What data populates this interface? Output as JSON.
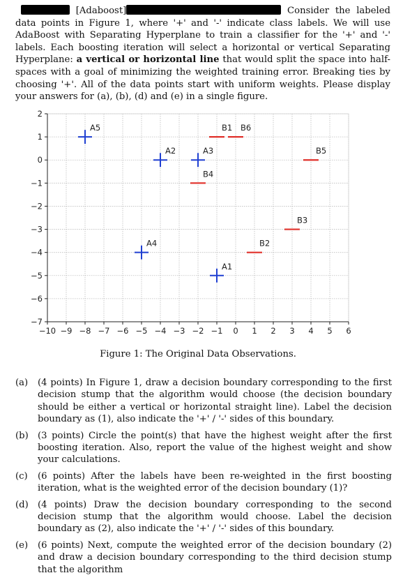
{
  "intro": {
    "tag": "[Adaboost]",
    "text_after_redaction": "Consider the labeled data points in Figure 1, where '+' and '-' indicate class labels. We will use AdaBoost with Separating Hyperplane to train a classifier for the '+' and '-' labels. Each boosting iteration will select a horizontal or vertical Separating Hyperplane: ",
    "bold_text": "a vertical or horizontal line",
    "text_end": " that would split the space into half-spaces with a goal of minimizing the weighted training error. Breaking ties by choosing '+'. All of the data points start with uniform weights. Please display your answers for (a), (b), (d) and (e) in a single figure."
  },
  "figure_caption": "Figure 1: The Original Data Observations.",
  "chart_data": {
    "type": "scatter",
    "xlim": [
      -10,
      6
    ],
    "ylim": [
      -7,
      2
    ],
    "x_ticks": [
      -10,
      -9,
      -8,
      -7,
      -6,
      -5,
      -4,
      -3,
      -2,
      -1,
      0,
      1,
      2,
      3,
      4,
      5,
      6
    ],
    "y_ticks": [
      2,
      1,
      0,
      -1,
      -2,
      -3,
      -4,
      -5,
      -6,
      -7
    ],
    "grid": true,
    "series": [
      {
        "marker": "+",
        "color": "#1f3fd1",
        "points": [
          {
            "label": "A1",
            "x": -1,
            "y": -5
          },
          {
            "label": "A2",
            "x": -4,
            "y": 0
          },
          {
            "label": "A3",
            "x": -2,
            "y": 0
          },
          {
            "label": "A4",
            "x": -5,
            "y": -4
          },
          {
            "label": "A5",
            "x": -8,
            "y": 1
          }
        ]
      },
      {
        "marker": "-",
        "color": "#e0302a",
        "points": [
          {
            "label": "B1",
            "x": -1,
            "y": 1
          },
          {
            "label": "B2",
            "x": 1,
            "y": -4
          },
          {
            "label": "B3",
            "x": 3,
            "y": -3
          },
          {
            "label": "B4",
            "x": -2,
            "y": -1
          },
          {
            "label": "B5",
            "x": 4,
            "y": 0
          },
          {
            "label": "B6",
            "x": 0,
            "y": 1
          }
        ]
      }
    ]
  },
  "questions": [
    {
      "label": "(a)",
      "text": "(4 points) In Figure 1, draw a decision boundary corresponding to the first decision stump that the algorithm would choose (the decision boundary should be either a vertical or horizontal straight line). Label the decision boundary as (1), also indicate the '+' / '-' sides of this boundary."
    },
    {
      "label": "(b)",
      "text": "(3 points) Circle the point(s) that have the highest weight after the first boosting iteration. Also, report the value of the highest weight and show your calculations."
    },
    {
      "label": "(c)",
      "text": "(6 points) After the labels have been re-weighted in the first boosting iteration, what is the weighted error of the decision boundary (1)?"
    },
    {
      "label": "(d)",
      "text": "(4 points) Draw the decision boundary corresponding to the second decision stump that the algorithm would choose. Label the decision boundary as (2), also indicate the '+' / '-' sides of this boundary."
    },
    {
      "label": "(e)",
      "text": "(6 points) Next, compute the weighted error of the decision boundary (2) and draw a decision boundary corresponding to the third decision stump that the algorithm"
    }
  ]
}
